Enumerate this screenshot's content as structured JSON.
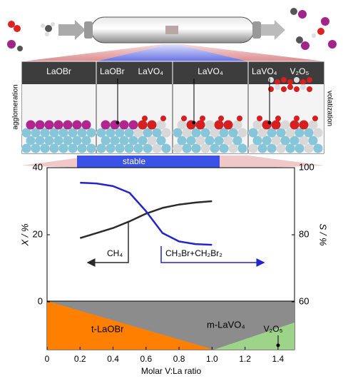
{
  "illustration": {
    "panels": [
      [
        "LaOBr"
      ],
      [
        "LaOBr",
        "LaVO₄"
      ],
      [
        "LaVO₄"
      ],
      [
        "LaVO₄",
        "V₂O₅"
      ]
    ],
    "left_label": "agglomeration",
    "right_label": "volatization",
    "band_label": "stable"
  },
  "chart_data": {
    "type": "line",
    "x": [
      0.2,
      0.3,
      0.4,
      0.5,
      0.6,
      0.7,
      0.8,
      0.9,
      1.0
    ],
    "series": [
      {
        "color": "#2b2b2b",
        "values": [
          19,
          20.5,
          22,
          24,
          26.3,
          28,
          29,
          29.6,
          30
        ]
      },
      {
        "color": "#2424cf",
        "axis": "y2",
        "values": [
          95.5,
          95.3,
          94.5,
          92.5,
          87,
          80.5,
          78,
          77.2,
          77
        ]
      }
    ],
    "xlim": [
      0,
      1.5
    ],
    "xticks": [
      0,
      0.2,
      0.4,
      0.6,
      0.8,
      {
        "value": 1,
        "label": "1.0"
      },
      1.2,
      1.4
    ],
    "ylim": [
      0,
      40
    ],
    "yticks": [
      0,
      20,
      40
    ],
    "y2lim": [
      60,
      100
    ],
    "y2ticks": [
      60,
      80,
      100
    ],
    "xlabel": "Molar V:La ratio",
    "ylabel": "X / %",
    "y2label": "S / %",
    "annotations": [
      "CH₄",
      "CH₃Br+CH₂Br₂"
    ],
    "phases": [
      "t-LaOBr",
      "m-LaVO₄",
      "V₂O₅"
    ]
  }
}
